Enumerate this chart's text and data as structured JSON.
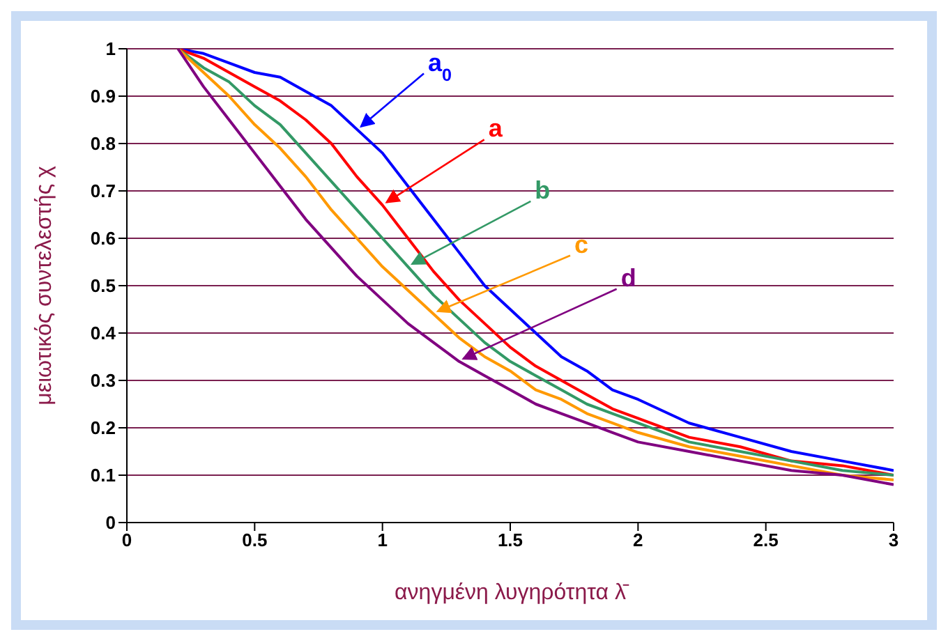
{
  "chart_data": {
    "type": "line",
    "xlabel": "ανηγμένη λυγηρότητα λ̄",
    "ylabel": "μειωτικός συντελεστής χ",
    "x": [
      0.2,
      0.3,
      0.4,
      0.5,
      0.6,
      0.7,
      0.8,
      0.9,
      1.0,
      1.1,
      1.2,
      1.3,
      1.4,
      1.5,
      1.6,
      1.7,
      1.8,
      1.9,
      2.0,
      2.2,
      2.4,
      2.6,
      2.8,
      3.0
    ],
    "series": [
      {
        "name": "a$_{0}$",
        "color": "#0000ff",
        "values": [
          1.0,
          0.99,
          0.97,
          0.95,
          0.94,
          0.91,
          0.88,
          0.83,
          0.78,
          0.71,
          0.64,
          0.57,
          0.5,
          0.45,
          0.4,
          0.35,
          0.32,
          0.28,
          0.26,
          0.21,
          0.18,
          0.15,
          0.13,
          0.11
        ]
      },
      {
        "name": "a",
        "color": "#ff0000",
        "values": [
          1.0,
          0.98,
          0.95,
          0.92,
          0.89,
          0.85,
          0.8,
          0.73,
          0.67,
          0.6,
          0.53,
          0.47,
          0.42,
          0.37,
          0.33,
          0.3,
          0.27,
          0.24,
          0.22,
          0.18,
          0.16,
          0.13,
          0.12,
          0.1
        ]
      },
      {
        "name": "b",
        "color": "#339966",
        "values": [
          1.0,
          0.96,
          0.93,
          0.88,
          0.84,
          0.78,
          0.72,
          0.66,
          0.6,
          0.54,
          0.48,
          0.43,
          0.38,
          0.34,
          0.31,
          0.28,
          0.25,
          0.23,
          0.21,
          0.17,
          0.15,
          0.13,
          0.11,
          0.1
        ]
      },
      {
        "name": "c",
        "color": "#ff9900",
        "values": [
          1.0,
          0.95,
          0.9,
          0.84,
          0.79,
          0.73,
          0.66,
          0.6,
          0.54,
          0.49,
          0.44,
          0.39,
          0.35,
          0.32,
          0.28,
          0.26,
          0.23,
          0.21,
          0.19,
          0.16,
          0.14,
          0.12,
          0.1,
          0.09
        ]
      },
      {
        "name": "d",
        "color": "#800080",
        "values": [
          1.0,
          0.92,
          0.85,
          0.78,
          0.71,
          0.64,
          0.58,
          0.52,
          0.47,
          0.42,
          0.38,
          0.34,
          0.31,
          0.28,
          0.25,
          0.23,
          0.21,
          0.19,
          0.17,
          0.15,
          0.13,
          0.11,
          0.1,
          0.08
        ]
      }
    ],
    "xlim": [
      0,
      3
    ],
    "xticks": [
      0,
      0.5,
      1,
      1.5,
      2,
      2.5,
      3
    ],
    "ylim": [
      0,
      1
    ],
    "yticks": [
      0,
      0.1,
      0.2,
      0.3,
      0.4,
      0.5,
      0.6,
      0.7,
      0.8,
      0.9,
      1
    ],
    "grid": "y",
    "legend": false,
    "marker": "none",
    "line_style": "solid"
  }
}
